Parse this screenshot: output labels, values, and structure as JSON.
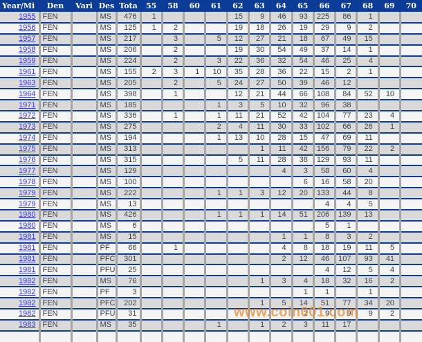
{
  "table": {
    "columns": [
      "Year/Mi",
      "Den",
      "Vari",
      "Des",
      "Tota",
      "55",
      "58",
      "60",
      "61",
      "62",
      "63",
      "64",
      "65",
      "66",
      "67",
      "68",
      "69",
      "70"
    ],
    "rows": [
      {
        "year": "1955",
        "den": "FEN",
        "vari": "",
        "des": "MS",
        "tota": "476",
        "values": [
          "1",
          "",
          "",
          "",
          "15",
          "9",
          "46",
          "93",
          "225",
          "86",
          "1",
          "",
          ""
        ]
      },
      {
        "year": "1956",
        "den": "FEN",
        "vari": "",
        "des": "MS",
        "tota": "125",
        "values": [
          "1",
          "2",
          "",
          "",
          "19",
          "18",
          "26",
          "19",
          "29",
          "9",
          "2",
          "",
          ""
        ]
      },
      {
        "year": "1957",
        "den": "FEN",
        "vari": "",
        "des": "MS",
        "tota": "217",
        "values": [
          "",
          "3",
          "",
          "5",
          "12",
          "27",
          "21",
          "18",
          "67",
          "49",
          "15",
          "",
          ""
        ]
      },
      {
        "year": "1958",
        "den": "FEN",
        "vari": "",
        "des": "MS",
        "tota": "206",
        "values": [
          "",
          "2",
          "",
          "",
          "19",
          "30",
          "54",
          "49",
          "37",
          "14",
          "1",
          "",
          ""
        ]
      },
      {
        "year": "1959",
        "den": "FEN",
        "vari": "",
        "des": "MS",
        "tota": "224",
        "values": [
          "",
          "2",
          "",
          "3",
          "22",
          "36",
          "32",
          "54",
          "46",
          "25",
          "4",
          "",
          ""
        ]
      },
      {
        "year": "1961",
        "den": "FEN",
        "vari": "",
        "des": "MS",
        "tota": "155",
        "values": [
          "2",
          "3",
          "1",
          "10",
          "35",
          "28",
          "36",
          "22",
          "15",
          "2",
          "1",
          "",
          ""
        ]
      },
      {
        "year": "1963",
        "den": "FEN",
        "vari": "",
        "des": "MS",
        "tota": "205",
        "values": [
          "",
          "2",
          "",
          "5",
          "24",
          "27",
          "50",
          "39",
          "46",
          "12",
          "",
          "",
          ""
        ]
      },
      {
        "year": "1964",
        "den": "FEN",
        "vari": "",
        "des": "MS",
        "tota": "398",
        "values": [
          "",
          "1",
          "",
          "",
          "12",
          "21",
          "44",
          "66",
          "108",
          "84",
          "52",
          "10",
          ""
        ]
      },
      {
        "year": "1971",
        "den": "FEN",
        "vari": "",
        "des": "MS",
        "tota": "185",
        "values": [
          "",
          "",
          "",
          "1",
          "3",
          "5",
          "10",
          "32",
          "96",
          "38",
          "",
          "",
          ""
        ]
      },
      {
        "year": "1972",
        "den": "FEN",
        "vari": "",
        "des": "MS",
        "tota": "336",
        "values": [
          "",
          "1",
          "",
          "1",
          "11",
          "21",
          "52",
          "42",
          "104",
          "77",
          "23",
          "4",
          ""
        ]
      },
      {
        "year": "1973",
        "den": "FEN",
        "vari": "",
        "des": "MS",
        "tota": "275",
        "values": [
          "",
          "",
          "",
          "2",
          "4",
          "11",
          "30",
          "33",
          "102",
          "66",
          "26",
          "1",
          ""
        ]
      },
      {
        "year": "1974",
        "den": "FEN",
        "vari": "",
        "des": "MS",
        "tota": "194",
        "values": [
          "",
          "",
          "",
          "1",
          "13",
          "10",
          "28",
          "15",
          "47",
          "69",
          "11",
          "",
          ""
        ]
      },
      {
        "year": "1975",
        "den": "FEN",
        "vari": "",
        "des": "MS",
        "tota": "313",
        "values": [
          "",
          "",
          "",
          "",
          "",
          "1",
          "11",
          "42",
          "156",
          "79",
          "22",
          "2",
          ""
        ]
      },
      {
        "year": "1976",
        "den": "FEN",
        "vari": "",
        "des": "MS",
        "tota": "315",
        "values": [
          "",
          "",
          "",
          "",
          "5",
          "11",
          "28",
          "38",
          "129",
          "93",
          "11",
          "",
          ""
        ]
      },
      {
        "year": "1977",
        "den": "FEN",
        "vari": "",
        "des": "MS",
        "tota": "129",
        "values": [
          "",
          "",
          "",
          "",
          "",
          "",
          "4",
          "3",
          "58",
          "60",
          "4",
          "",
          ""
        ]
      },
      {
        "year": "1978",
        "den": "FEN",
        "vari": "",
        "des": "MS",
        "tota": "100",
        "values": [
          "",
          "",
          "",
          "",
          "",
          "",
          "",
          "6",
          "16",
          "58",
          "20",
          "",
          ""
        ]
      },
      {
        "year": "1979",
        "den": "FEN",
        "vari": "",
        "des": "MS",
        "tota": "222",
        "values": [
          "",
          "",
          "",
          "1",
          "1",
          "3",
          "12",
          "20",
          "133",
          "44",
          "8",
          "",
          ""
        ]
      },
      {
        "year": "1979",
        "den": "FEN",
        "vari": "",
        "des": "MS",
        "tota": "13",
        "values": [
          "",
          "",
          "",
          "",
          "",
          "",
          "",
          "",
          "4",
          "4",
          "5",
          "",
          ""
        ]
      },
      {
        "year": "1980",
        "den": "FEN",
        "vari": "",
        "des": "MS",
        "tota": "426",
        "values": [
          "",
          "",
          "",
          "1",
          "1",
          "1",
          "14",
          "51",
          "206",
          "139",
          "13",
          "",
          ""
        ]
      },
      {
        "year": "1980",
        "den": "FEN",
        "vari": "",
        "des": "MS",
        "tota": "6",
        "values": [
          "",
          "",
          "",
          "",
          "",
          "",
          "",
          "",
          "5",
          "1",
          "",
          "",
          ""
        ]
      },
      {
        "year": "1981",
        "den": "FEN",
        "vari": "",
        "des": "MS",
        "tota": "15",
        "values": [
          "",
          "",
          "",
          "",
          "",
          "",
          "1",
          "1",
          "8",
          "3",
          "2",
          "",
          ""
        ]
      },
      {
        "year": "1981",
        "den": "FEN",
        "vari": "",
        "des": "PF",
        "tota": "66",
        "values": [
          "",
          "1",
          "",
          "",
          "",
          "",
          "4",
          "8",
          "18",
          "19",
          "11",
          "5",
          ""
        ]
      },
      {
        "year": "1981",
        "den": "FEN",
        "vari": "",
        "des": "PFC",
        "tota": "301",
        "values": [
          "",
          "",
          "",
          "",
          "",
          "",
          "2",
          "12",
          "46",
          "107",
          "93",
          "41",
          ""
        ]
      },
      {
        "year": "1981",
        "den": "FEN",
        "vari": "",
        "des": "PFU",
        "tota": "25",
        "values": [
          "",
          "",
          "",
          "",
          "",
          "",
          "",
          "",
          "4",
          "12",
          "5",
          "4",
          ""
        ]
      },
      {
        "year": "1982",
        "den": "FEN",
        "vari": "",
        "des": "MS",
        "tota": "76",
        "values": [
          "",
          "",
          "",
          "",
          "",
          "1",
          "3",
          "4",
          "18",
          "32",
          "16",
          "2",
          ""
        ]
      },
      {
        "year": "1982",
        "den": "FEN",
        "vari": "",
        "des": "PF",
        "tota": "3",
        "values": [
          "",
          "",
          "",
          "",
          "",
          "",
          "",
          "1",
          "1",
          "",
          "1",
          "",
          ""
        ]
      },
      {
        "year": "1982",
        "den": "FEN",
        "vari": "",
        "des": "PFC",
        "tota": "202",
        "values": [
          "",
          "",
          "",
          "",
          "",
          "1",
          "5",
          "14",
          "51",
          "77",
          "34",
          "20",
          ""
        ]
      },
      {
        "year": "1982",
        "den": "FEN",
        "vari": "",
        "des": "PFU",
        "tota": "31",
        "values": [
          "",
          "",
          "",
          "",
          "",
          "",
          "",
          "2",
          "9",
          "9",
          "9",
          "2",
          ""
        ]
      },
      {
        "year": "1983",
        "den": "FEN",
        "vari": "",
        "des": "MS",
        "tota": "35",
        "values": [
          "",
          "",
          "",
          "1",
          "",
          "1",
          "2",
          "3",
          "11",
          "17",
          "",
          "",
          ""
        ]
      }
    ]
  },
  "watermark": {
    "text": "www.coin001.com",
    "color": "#e78f3c"
  },
  "colors": {
    "header_bg": "#0b3d98",
    "row_separator": "#0b3d98",
    "row_shade_bg": "#dadada",
    "row_light_bg": "#f4f4f4",
    "column_divider": "#a5a5a5",
    "year_link": "#3a3ad0",
    "cell_text": "#3e3e48"
  }
}
